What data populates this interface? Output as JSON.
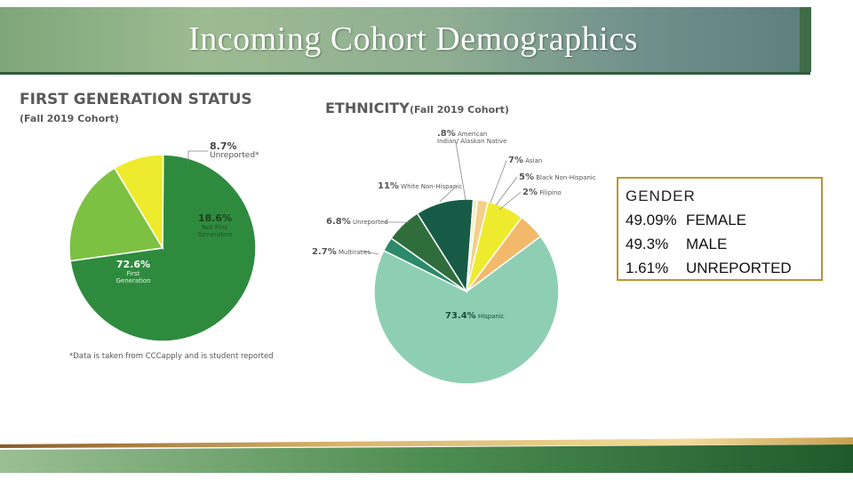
{
  "slide_title": "Incoming Cohort Demographics",
  "first_gen": {
    "heading": "FIRST GENERATION STATUS",
    "subheading": "(Fall 2019 Cohort)",
    "footnote": "*Data is taken from CCCapply and is student reported"
  },
  "ethnicity": {
    "heading": "ETHNICITY",
    "subheading": "(Fall 2019 Cohort)"
  },
  "gender": {
    "heading": "GENDER",
    "rows": [
      {
        "value": "49.09%",
        "label": "FEMALE"
      },
      {
        "value": "49.3%",
        "label": "MALE"
      },
      {
        "value": "1.61%",
        "label": "UNREPORTED"
      }
    ]
  },
  "colors": {
    "first_gen": [
      "#2e8b3e",
      "#7dc143",
      "#eeeb2f"
    ],
    "ethnicity": [
      "#8ecfb4",
      "#2a8a6a",
      "#2f6e3c",
      "#175b46",
      "#f3eeb8",
      "#f4cf8a",
      "#eeeb2f",
      "#f2b96a"
    ]
  },
  "chart_data": [
    {
      "type": "pie",
      "title": "FIRST GENERATION STATUS",
      "subtitle": "(Fall 2019 Cohort)",
      "slices": [
        {
          "label": "First Generation",
          "value": 72.6,
          "text": "72.6%"
        },
        {
          "label": "Not First Generation",
          "value": 18.6,
          "text": "18.6%"
        },
        {
          "label": "Unreported*",
          "value": 8.7,
          "text": "8.7%"
        }
      ]
    },
    {
      "type": "pie",
      "title": "ETHNICITY",
      "subtitle": "(Fall 2019 Cohort)",
      "slices": [
        {
          "label": "Hispanic",
          "value": 73.4,
          "text": "73.4%"
        },
        {
          "label": "Multiraces",
          "value": 2.7,
          "text": "2.7%"
        },
        {
          "label": "Unreported",
          "value": 6.8,
          "text": "6.8%"
        },
        {
          "label": "White Non-Hispanic",
          "value": 11,
          "text": "11%"
        },
        {
          "label": "American Indian/ Alaskan Native",
          "value": 0.8,
          "text": ".8%"
        },
        {
          "label": "Filipino",
          "value": 2,
          "text": "2%"
        },
        {
          "label": "Asian",
          "value": 7,
          "text": "7%"
        },
        {
          "label": "Black Non-Hispanic",
          "value": 5,
          "text": "5%"
        }
      ]
    }
  ]
}
